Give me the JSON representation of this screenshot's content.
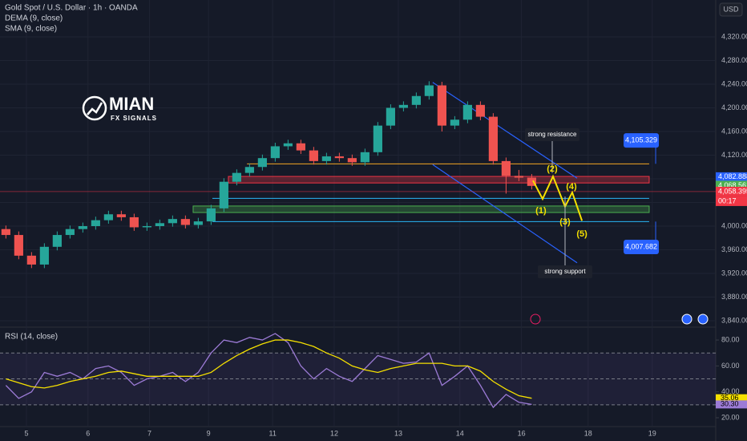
{
  "header": {
    "title": "Gold Spot / U.S. Dollar · 1h · OANDA",
    "indicators": [
      "DEMA (9, close)",
      "SMA (9, close)"
    ]
  },
  "logo": {
    "name": "MIAN",
    "tagline": "FX SIGNALS"
  },
  "chart_data": {
    "type": "candlestick",
    "currency": "USD",
    "x": [
      -8,
      -3,
      2,
      7,
      12,
      17,
      22,
      27,
      32,
      37,
      42,
      47,
      52,
      57,
      62,
      67,
      72,
      77,
      82,
      87,
      92,
      97,
      102,
      107,
      112,
      117,
      122,
      127,
      132,
      137,
      142,
      147,
      152,
      157,
      162,
      167,
      172,
      177,
      182,
      187,
      192,
      197
    ],
    "open": [
      3995,
      3985,
      3950,
      3935,
      3965,
      3985,
      3995,
      4000,
      4010,
      4020,
      4015,
      3998,
      4000,
      4005,
      4012,
      4002,
      4008,
      4030,
      4075,
      4090,
      4100,
      4115,
      4135,
      4140,
      4128,
      4110,
      4118,
      4115,
      4108,
      4125,
      4170,
      4200,
      4205,
      4220,
      4238,
      4170,
      4180,
      4205,
      4185,
      4110,
      4085,
      4082
    ],
    "high": [
      4001,
      3991,
      3956,
      3971,
      3991,
      4001,
      4006,
      4016,
      4026,
      4026,
      4021,
      4006,
      4011,
      4018,
      4018,
      4014,
      4036,
      4081,
      4096,
      4106,
      4121,
      4141,
      4146,
      4146,
      4134,
      4124,
      4124,
      4121,
      4131,
      4176,
      4206,
      4211,
      4226,
      4245,
      4244,
      4186,
      4211,
      4211,
      4191,
      4116,
      4095,
      4088
    ],
    "low": [
      3979,
      3944,
      3929,
      3929,
      3959,
      3979,
      3989,
      3994,
      4004,
      4009,
      3992,
      3992,
      3994,
      3999,
      3996,
      3996,
      4002,
      4024,
      4069,
      4084,
      4094,
      4109,
      4129,
      4122,
      4104,
      4104,
      4109,
      4102,
      4102,
      4119,
      4164,
      4194,
      4199,
      4214,
      4160,
      4164,
      4174,
      4179,
      4104,
      4055,
      4076,
      4062
    ],
    "close": [
      3985,
      3950,
      3935,
      3965,
      3985,
      3995,
      4000,
      4010,
      4020,
      4015,
      3998,
      4000,
      4005,
      4012,
      4002,
      4008,
      4030,
      4075,
      4090,
      4100,
      4115,
      4135,
      4140,
      4128,
      4110,
      4118,
      4115,
      4108,
      4125,
      4170,
      4200,
      4205,
      4220,
      4238,
      4170,
      4180,
      4205,
      4185,
      4110,
      4085,
      4082,
      4068
    ],
    "colors": {
      "up": "#26a69a",
      "down": "#ef5350"
    },
    "xlim": [
      -10.3,
      268.75
    ],
    "xticks": [
      {
        "value": 0,
        "label": "5"
      },
      {
        "value": 24,
        "label": "6"
      },
      {
        "value": 48,
        "label": "7"
      },
      {
        "value": 71,
        "label": "9"
      },
      {
        "value": 96,
        "label": "11"
      },
      {
        "value": 120,
        "label": "12"
      },
      {
        "value": 145,
        "label": "13"
      },
      {
        "value": 169,
        "label": "14"
      },
      {
        "value": 193,
        "label": "16"
      },
      {
        "value": 219,
        "label": "18"
      },
      {
        "value": 244,
        "label": "19"
      }
    ],
    "ylim": [
      3833.2,
      4382.4
    ],
    "yticks": [
      {
        "value": 4320,
        "label": "4,320.000"
      },
      {
        "value": 4280,
        "label": "4,280.000"
      },
      {
        "value": 4240,
        "label": "4,240.000"
      },
      {
        "value": 4200,
        "label": "4,200.000"
      },
      {
        "value": 4160,
        "label": "4,160.000"
      },
      {
        "value": 4120,
        "label": "4,120.000"
      },
      {
        "value": 4080,
        "label": "4,080.000"
      },
      {
        "value": 4040,
        "label": "4,040.000"
      },
      {
        "value": 4000,
        "label": "4,000.000"
      },
      {
        "value": 3960,
        "label": "3,960.000"
      },
      {
        "value": 3920,
        "label": "3,920.000"
      },
      {
        "value": 3880,
        "label": "3,880.000"
      },
      {
        "value": 3840,
        "label": "3,840.000"
      }
    ],
    "grid": true,
    "zones": [
      {
        "from": 4073,
        "to": 4084,
        "start": 78.75,
        "end": 242.8,
        "color": "#f23645"
      },
      {
        "from": 4023,
        "to": 4034,
        "start": 65,
        "end": 242.8,
        "color": "#4caf50"
      }
    ],
    "levels": [
      {
        "value": 4105.329,
        "start": 86,
        "end": 242.8,
        "color": "#f5a623"
      },
      {
        "value": 4047,
        "start": 72.5,
        "end": 242.8,
        "color": "#29b6f6"
      },
      {
        "value": 4007.682,
        "start": 72.5,
        "end": 242.8,
        "color": "#29b6f6"
      }
    ],
    "level_boxes": [
      {
        "value": 4105.329,
        "label": "4,105.329",
        "x": 239.7,
        "y": 4145
      },
      {
        "value": 4007.682,
        "label": "4,007.682",
        "x": 239.7,
        "y": 3964.7
      }
    ],
    "channel": [
      {
        "x": [
          158.4,
          214.7
        ],
        "y": [
          4243,
          4081
        ]
      },
      {
        "x": [
          158.4,
          214.7
        ],
        "y": [
          4104,
          3938
        ]
      }
    ],
    "wave": {
      "x": [
        197.5,
        201.25,
        205.3,
        210,
        212.8,
        216.6
      ],
      "y": [
        4077,
        4046,
        4084,
        4033,
        4057,
        4009
      ],
      "color": "#f5e000"
    },
    "wave_labels": [
      {
        "text": "(1)",
        "x": 200.6,
        "y": 4025.8
      },
      {
        "text": "(2)",
        "x": 205,
        "y": 4096
      },
      {
        "text": "(3)",
        "x": 210,
        "y": 4006.8
      },
      {
        "text": "(4)",
        "x": 212.5,
        "y": 4066.4
      },
      {
        "text": "(5)",
        "x": 216.6,
        "y": 3986.4
      }
    ],
    "notes": [
      {
        "text": "strong resistance",
        "x": 205,
        "y": 4154.6,
        "target": 4090
      },
      {
        "text": "strong support",
        "x": 210,
        "y": 3922.7,
        "target": 4050
      }
    ],
    "price_tags": [
      {
        "value": 4082.888,
        "label": "4,082.888",
        "color": "#2962ff"
      },
      {
        "value": 4068.561,
        "label": "4,068.561",
        "color": "#4caf50"
      },
      {
        "value": 4058.395,
        "label": "4,058.395",
        "color": "#f23645"
      }
    ],
    "countdown": "00:17",
    "rsi": {
      "title": "RSI (14, close)",
      "values": [
        45,
        35,
        40,
        55,
        52,
        55,
        50,
        58,
        60,
        55,
        45,
        50,
        52,
        55,
        48,
        55,
        70,
        80,
        78,
        82,
        80,
        85,
        78,
        60,
        50,
        58,
        52,
        48,
        58,
        68,
        65,
        62,
        63,
        70,
        45,
        52,
        60,
        45,
        28,
        38,
        32,
        30.3
      ],
      "ma": [
        50,
        47,
        44,
        43,
        45,
        48,
        50,
        52,
        55,
        56,
        54,
        52,
        52,
        52,
        52,
        52,
        55,
        62,
        68,
        73,
        77,
        80,
        80,
        78,
        75,
        70,
        66,
        60,
        57,
        55,
        58,
        60,
        62,
        62,
        62,
        60,
        60,
        56,
        48,
        42,
        37,
        35.06
      ],
      "colors": {
        "rsi": "#9c7bd6",
        "ma": "#f5e000"
      },
      "ylim": [
        13.2,
        88.7
      ],
      "yticks": [
        {
          "value": 80,
          "label": "80.00"
        },
        {
          "value": 60,
          "label": "60.00"
        },
        {
          "value": 40,
          "label": "40.00"
        },
        {
          "value": 20,
          "label": "20.00"
        }
      ],
      "bands": [
        70,
        50,
        30
      ],
      "last_labels": [
        {
          "value": 35.06,
          "label": "35.06",
          "color": "#f5e000"
        },
        {
          "value": 30.3,
          "label": "30.30",
          "color": "#9c7bd6"
        }
      ]
    }
  }
}
